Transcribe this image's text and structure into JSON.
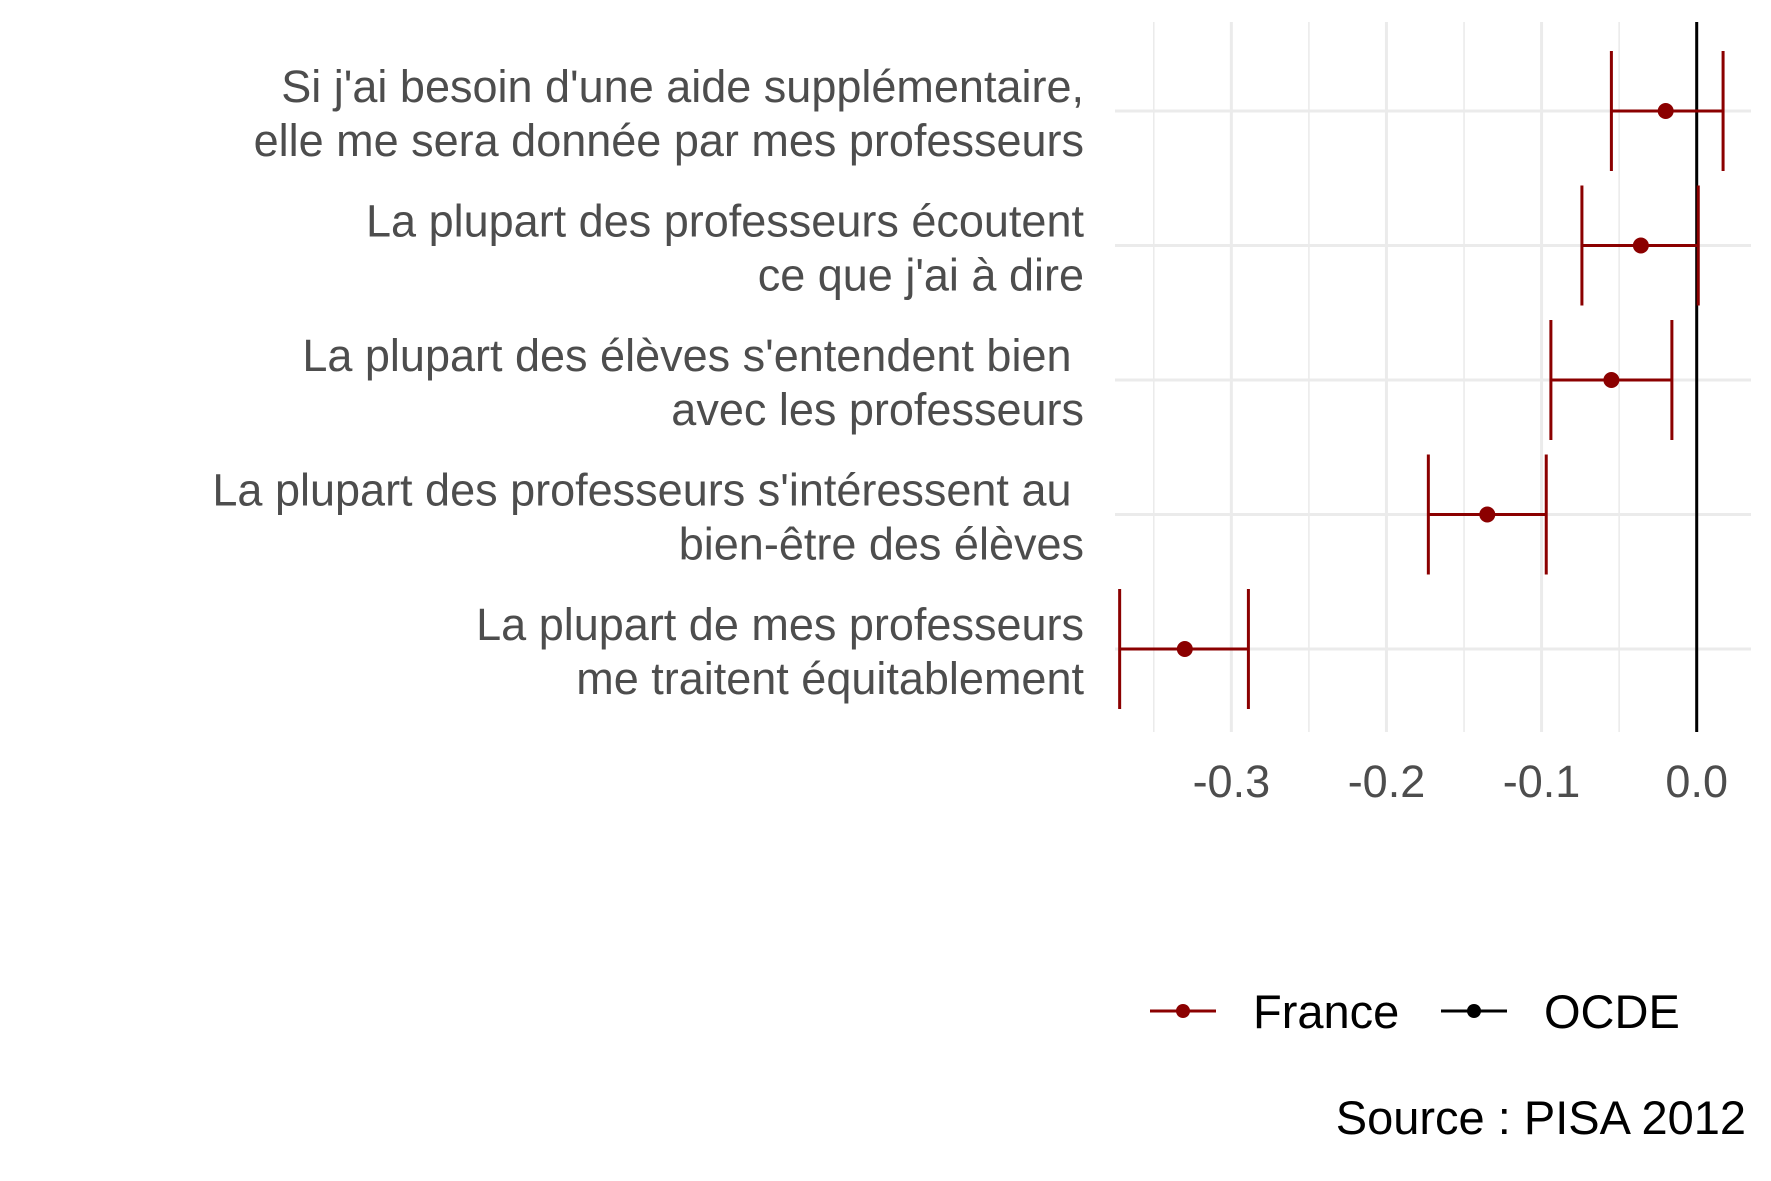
{
  "chart_data": {
    "type": "errorbar",
    "title": "",
    "xlabel": "",
    "ylabel": "",
    "xlim": [
      -0.375,
      0.035
    ],
    "x_ticks": [
      -0.3,
      -0.2,
      -0.1,
      0.0
    ],
    "x_tick_labels": [
      "-0.3",
      "-0.2",
      "-0.1",
      "0.0"
    ],
    "grid": true,
    "legend_position": "bottom-right",
    "categories": [
      [
        "Si j'ai besoin d'une aide supplémentaire,",
        "elle me sera donnée par mes professeurs"
      ],
      [
        "La plupart des professeurs écoutent",
        "ce que j'ai à dire"
      ],
      [
        "La plupart des élèves s'entendent bien ",
        "avec les professeurs"
      ],
      [
        "La plupart des professeurs s'intéressent au ",
        "bien-être des élèves"
      ],
      [
        "La plupart de mes professeurs",
        "me traitent équitablement"
      ]
    ],
    "series": [
      {
        "name": "France",
        "color": "#8b0000",
        "values": [
          -0.02,
          -0.036,
          -0.055,
          -0.135,
          -0.33
        ],
        "lower": [
          -0.055,
          -0.074,
          -0.094,
          -0.173,
          -0.372
        ],
        "upper": [
          0.017,
          0.001,
          -0.016,
          -0.097,
          -0.289
        ]
      }
    ],
    "reference": {
      "name": "OCDE",
      "color": "#000000",
      "value": 0.0
    },
    "caption": "Source : PISA 2012"
  }
}
